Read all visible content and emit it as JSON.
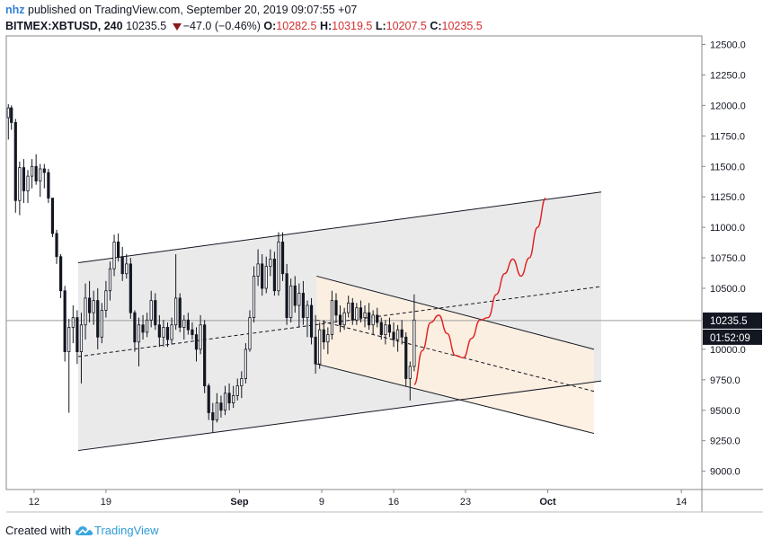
{
  "header": {
    "user": "nhz",
    "published": "published on TradingView.com, September 20, 2019 09:07:55 +07",
    "symbol": "BITMEX:XBTUSD, 240",
    "last": "10235.5",
    "change": "−47.0 (−0.46%)",
    "o_label": "O:",
    "o_val": "10282.5",
    "h_label": "H:",
    "h_val": "10319.5",
    "l_label": "L:",
    "l_val": "10207.5",
    "c_label": "C:",
    "c_val": "10235.5"
  },
  "footer": {
    "created": "Created with",
    "brand": "TradingView"
  },
  "colors": {
    "up": "#131722",
    "down": "#131722",
    "channel": "#e6e6e6",
    "inner": "#fdf0e0",
    "projection": "#e02020",
    "accent": "#2f7ed8"
  },
  "chart_data": {
    "type": "candlestick",
    "y_axis": {
      "ticks": [
        12500,
        12250,
        12000,
        11750,
        11500,
        11250,
        11000,
        10750,
        10500,
        10250,
        10000,
        9750,
        9500,
        9250,
        9000
      ],
      "tick_labels": [
        "12500.0",
        "12250.0",
        "12000.0",
        "11750.0",
        "11500.0",
        "11250.0",
        "11000.0",
        "10750.0",
        "10500.0",
        "10250.0",
        "10000.0",
        "9750.0",
        "9500.0",
        "9250.0",
        "9000.0"
      ],
      "range": [
        8850,
        12570
      ]
    },
    "x_axis": {
      "tick_labels": [
        "12",
        "19",
        "Sep",
        "9",
        "16",
        "23",
        "Oct",
        "14"
      ],
      "tick_days": [
        12,
        19,
        32,
        40,
        47,
        54,
        62,
        75
      ],
      "range_days": [
        9.3,
        77
      ],
      "note": "day index: Aug 1 = 1"
    },
    "price_label": "10235.5",
    "countdown_label": "01:52:09",
    "last_price": 10235.5,
    "candles": [
      [
        9.5,
        11900,
        12010,
        11720,
        11980
      ],
      [
        9.8,
        11980,
        12000,
        11800,
        11860
      ],
      [
        10.2,
        11860,
        11890,
        11120,
        11220
      ],
      [
        10.6,
        11220,
        11540,
        11100,
        11490
      ],
      [
        11.0,
        11490,
        11560,
        11200,
        11300
      ],
      [
        11.4,
        11300,
        11470,
        11200,
        11420
      ],
      [
        11.8,
        11420,
        11560,
        11320,
        11500
      ],
      [
        12.2,
        11500,
        11600,
        11350,
        11380
      ],
      [
        12.6,
        11380,
        11520,
        11250,
        11480
      ],
      [
        13.0,
        11480,
        11520,
        11320,
        11450
      ],
      [
        13.4,
        11450,
        11480,
        11200,
        11240
      ],
      [
        13.8,
        11240,
        11220,
        10920,
        10950
      ],
      [
        14.2,
        10950,
        10980,
        10700,
        10760
      ],
      [
        14.6,
        10760,
        10780,
        10420,
        10480
      ],
      [
        15.0,
        10480,
        10520,
        9900,
        9980
      ],
      [
        15.4,
        9980,
        10250,
        9480,
        10180
      ],
      [
        15.8,
        10180,
        10360,
        10050,
        10260
      ],
      [
        16.2,
        10260,
        10320,
        9880,
        9980
      ],
      [
        16.6,
        9980,
        10300,
        9720,
        10200
      ],
      [
        17.0,
        10200,
        10540,
        10080,
        10420
      ],
      [
        17.4,
        10420,
        10560,
        10220,
        10300
      ],
      [
        17.8,
        10300,
        10480,
        10200,
        10400
      ],
      [
        18.2,
        10400,
        10500,
        10000,
        10100
      ],
      [
        18.6,
        10100,
        10380,
        10050,
        10320
      ],
      [
        19.0,
        10320,
        10560,
        10260,
        10480
      ],
      [
        19.4,
        10480,
        10720,
        10400,
        10660
      ],
      [
        19.8,
        10660,
        10940,
        10600,
        10880
      ],
      [
        20.2,
        10880,
        10950,
        10720,
        10760
      ],
      [
        20.6,
        10760,
        10840,
        10560,
        10620
      ],
      [
        21.0,
        10620,
        10780,
        10580,
        10700
      ],
      [
        21.4,
        10700,
        10750,
        10250,
        10300
      ],
      [
        21.8,
        10300,
        10320,
        9980,
        10060
      ],
      [
        22.2,
        10060,
        10260,
        9860,
        10200
      ],
      [
        22.6,
        10200,
        10280,
        10080,
        10140
      ],
      [
        23.0,
        10140,
        10300,
        10100,
        10240
      ],
      [
        23.4,
        10240,
        10480,
        10180,
        10400
      ],
      [
        23.8,
        10400,
        10460,
        10160,
        10200
      ],
      [
        24.2,
        10200,
        10280,
        10020,
        10100
      ],
      [
        24.6,
        10100,
        10240,
        10020,
        10180
      ],
      [
        25.0,
        10180,
        10220,
        10020,
        10080
      ],
      [
        25.4,
        10080,
        10260,
        10040,
        10200
      ],
      [
        25.8,
        10200,
        10780,
        10160,
        10420
      ],
      [
        26.2,
        10420,
        10460,
        10140,
        10180
      ],
      [
        26.6,
        10180,
        10280,
        10080,
        10240
      ],
      [
        27.0,
        10240,
        10300,
        10120,
        10160
      ],
      [
        27.4,
        10160,
        10220,
        10080,
        10120
      ],
      [
        27.8,
        10120,
        10180,
        9900,
        10000
      ],
      [
        28.2,
        10000,
        10280,
        9960,
        10200
      ],
      [
        28.6,
        10200,
        10240,
        9640,
        9700
      ],
      [
        29.0,
        9700,
        9720,
        9420,
        9480
      ],
      [
        29.4,
        9480,
        9560,
        9320,
        9420
      ],
      [
        29.8,
        9420,
        9640,
        9400,
        9560
      ],
      [
        30.2,
        9560,
        9620,
        9440,
        9500
      ],
      [
        30.6,
        9500,
        9700,
        9460,
        9640
      ],
      [
        31.0,
        9640,
        9720,
        9500,
        9560
      ],
      [
        31.4,
        9560,
        9700,
        9520,
        9620
      ],
      [
        31.8,
        9620,
        9760,
        9580,
        9700
      ],
      [
        32.2,
        9700,
        9820,
        9600,
        9760
      ],
      [
        32.6,
        9760,
        10050,
        9720,
        10000
      ],
      [
        33.0,
        10000,
        10320,
        9980,
        10260
      ],
      [
        33.4,
        10260,
        10680,
        10220,
        10600
      ],
      [
        33.8,
        10600,
        10820,
        10520,
        10700
      ],
      [
        34.2,
        10700,
        10780,
        10440,
        10500
      ],
      [
        34.6,
        10500,
        10760,
        10460,
        10680
      ],
      [
        35.0,
        10680,
        10820,
        10600,
        10740
      ],
      [
        35.4,
        10740,
        10800,
        10440,
        10480
      ],
      [
        35.8,
        10480,
        10960,
        10440,
        10880
      ],
      [
        36.2,
        10880,
        10960,
        10560,
        10620
      ],
      [
        36.6,
        10620,
        10700,
        10200,
        10260
      ],
      [
        37.0,
        10260,
        10580,
        10220,
        10520
      ],
      [
        37.4,
        10520,
        10600,
        10300,
        10360
      ],
      [
        37.8,
        10360,
        10540,
        10180,
        10460
      ],
      [
        38.2,
        10460,
        10560,
        10200,
        10260
      ],
      [
        38.6,
        10260,
        10400,
        10100,
        10360
      ],
      [
        39.0,
        10360,
        10420,
        10040,
        10100
      ],
      [
        39.4,
        10100,
        10280,
        9800,
        9880
      ],
      [
        39.8,
        9880,
        10220,
        9840,
        10160
      ],
      [
        40.2,
        10160,
        10240,
        10000,
        10060
      ],
      [
        40.6,
        10060,
        10180,
        9960,
        10120
      ],
      [
        41.0,
        10120,
        10480,
        10080,
        10400
      ],
      [
        41.4,
        10400,
        10460,
        10220,
        10280
      ],
      [
        41.8,
        10280,
        10360,
        10140,
        10200
      ],
      [
        42.2,
        10200,
        10340,
        10160,
        10300
      ],
      [
        42.6,
        10300,
        10440,
        10260,
        10380
      ],
      [
        43.0,
        10380,
        10420,
        10200,
        10240
      ],
      [
        43.4,
        10240,
        10380,
        10200,
        10340
      ],
      [
        43.8,
        10340,
        10400,
        10220,
        10260
      ],
      [
        44.2,
        10260,
        10360,
        10180,
        10300
      ],
      [
        44.6,
        10300,
        10380,
        10160,
        10200
      ],
      [
        45.0,
        10200,
        10320,
        10120,
        10280
      ],
      [
        45.4,
        10280,
        10340,
        10180,
        10220
      ],
      [
        45.8,
        10220,
        10260,
        10080,
        10120
      ],
      [
        46.2,
        10120,
        10240,
        10040,
        10200
      ],
      [
        46.6,
        10200,
        10260,
        10100,
        10140
      ],
      [
        47.0,
        10140,
        10220,
        10020,
        10080
      ],
      [
        47.4,
        10080,
        10200,
        9980,
        10160
      ],
      [
        47.8,
        10160,
        10240,
        10040,
        10100
      ],
      [
        48.2,
        10100,
        10140,
        9700,
        9760
      ],
      [
        48.6,
        9760,
        9900,
        9580,
        9860
      ],
      [
        49.0,
        9860,
        10450,
        9820,
        10240
      ]
    ],
    "annotations": {
      "outer_channel": {
        "upper": [
          [
            16.3,
            10710
          ],
          [
            67.2,
            11290
          ]
        ],
        "lower": [
          [
            16.3,
            9170
          ],
          [
            67.2,
            9740
          ]
        ],
        "mid": [
          [
            16.3,
            9940
          ],
          [
            67.2,
            10515
          ]
        ]
      },
      "inner_channel": {
        "upper": [
          [
            39.5,
            10600
          ],
          [
            66.5,
            10000
          ]
        ],
        "lower": [
          [
            39.5,
            9880
          ],
          [
            66.5,
            9310
          ]
        ],
        "mid": [
          [
            39.5,
            10240
          ],
          [
            66.5,
            9655
          ]
        ]
      },
      "projection": [
        [
          49.0,
          9710
        ],
        [
          49.8,
          9990
        ],
        [
          50.6,
          10220
        ],
        [
          51.4,
          10280
        ],
        [
          52.2,
          10130
        ],
        [
          53.0,
          9950
        ],
        [
          53.8,
          9930
        ],
        [
          54.6,
          10090
        ],
        [
          55.4,
          10240
        ],
        [
          56.2,
          10260
        ],
        [
          57.0,
          10450
        ],
        [
          57.8,
          10620
        ],
        [
          58.6,
          10740
        ],
        [
          59.4,
          10600
        ],
        [
          60.2,
          10750
        ],
        [
          61.0,
          11000
        ],
        [
          61.8,
          11240
        ]
      ]
    }
  }
}
